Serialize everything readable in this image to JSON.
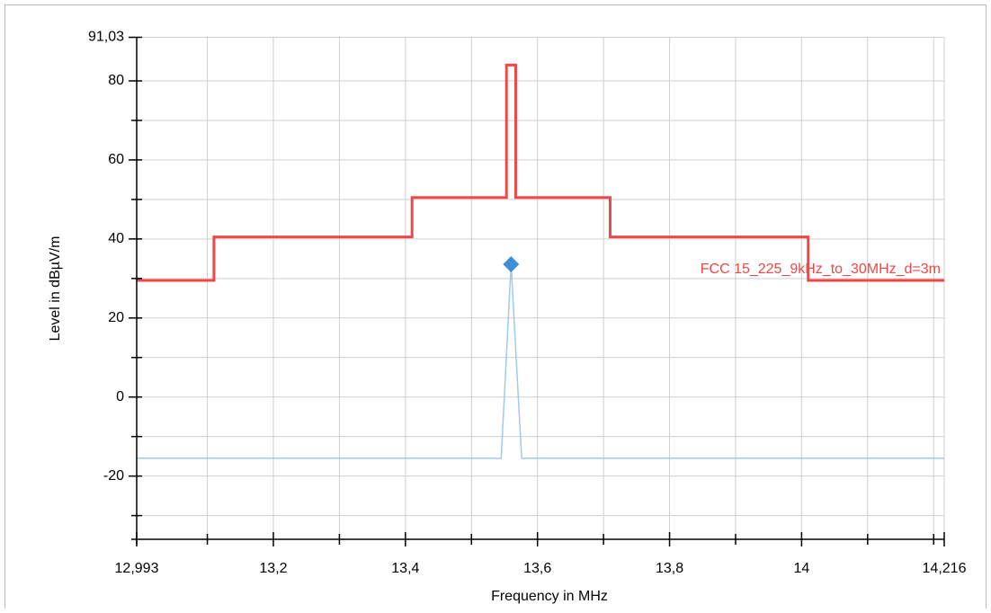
{
  "chart_data": {
    "type": "line",
    "xlabel": "Frequency in MHz",
    "ylabel": "Level in dBµV/m",
    "xlim": [
      12.993,
      14.216
    ],
    "ylim": [
      -36,
      91.03
    ],
    "xticks": [
      {
        "value": 12.993,
        "label": "12,993"
      },
      {
        "value": 13.2,
        "label": "13,2"
      },
      {
        "value": 13.4,
        "label": "13,4"
      },
      {
        "value": 13.6,
        "label": "13,6"
      },
      {
        "value": 13.8,
        "label": "13,8"
      },
      14,
      {
        "value": 14.216,
        "label": "14,216"
      }
    ],
    "xminorticks": [
      13.1,
      13.3,
      13.5,
      13.7,
      13.9,
      14.1,
      14.2
    ],
    "yticks": [
      {
        "value": 91.03,
        "label": "91,03"
      },
      80,
      60,
      40,
      20,
      0,
      -20
    ],
    "yminorticks": [
      70,
      50,
      30,
      10,
      -10,
      -30
    ],
    "grid": true,
    "series": [
      {
        "name": "FCC 15_225_9kHz_to_30MHz_d=3m",
        "color": "#f04848",
        "width": 3,
        "x": [
          12.993,
          13.11,
          13.11,
          13.41,
          13.41,
          13.553,
          13.553,
          13.567,
          13.567,
          13.71,
          13.71,
          14.01,
          14.01,
          14.216
        ],
        "values": [
          29.5,
          29.5,
          40.5,
          40.5,
          50.5,
          50.5,
          84,
          84,
          50.5,
          50.5,
          40.5,
          40.5,
          29.5,
          29.5
        ]
      },
      {
        "color": "#9ecbf0",
        "width": 1.5,
        "x": [
          12.993,
          13.545,
          13.56,
          13.576,
          14.216
        ],
        "values": [
          -15.5,
          -15.5,
          33.6,
          -15.5,
          -15.5
        ]
      }
    ],
    "markers": [
      {
        "x": 13.56,
        "y": 33.6,
        "color": "#3f8fd6"
      }
    ]
  }
}
